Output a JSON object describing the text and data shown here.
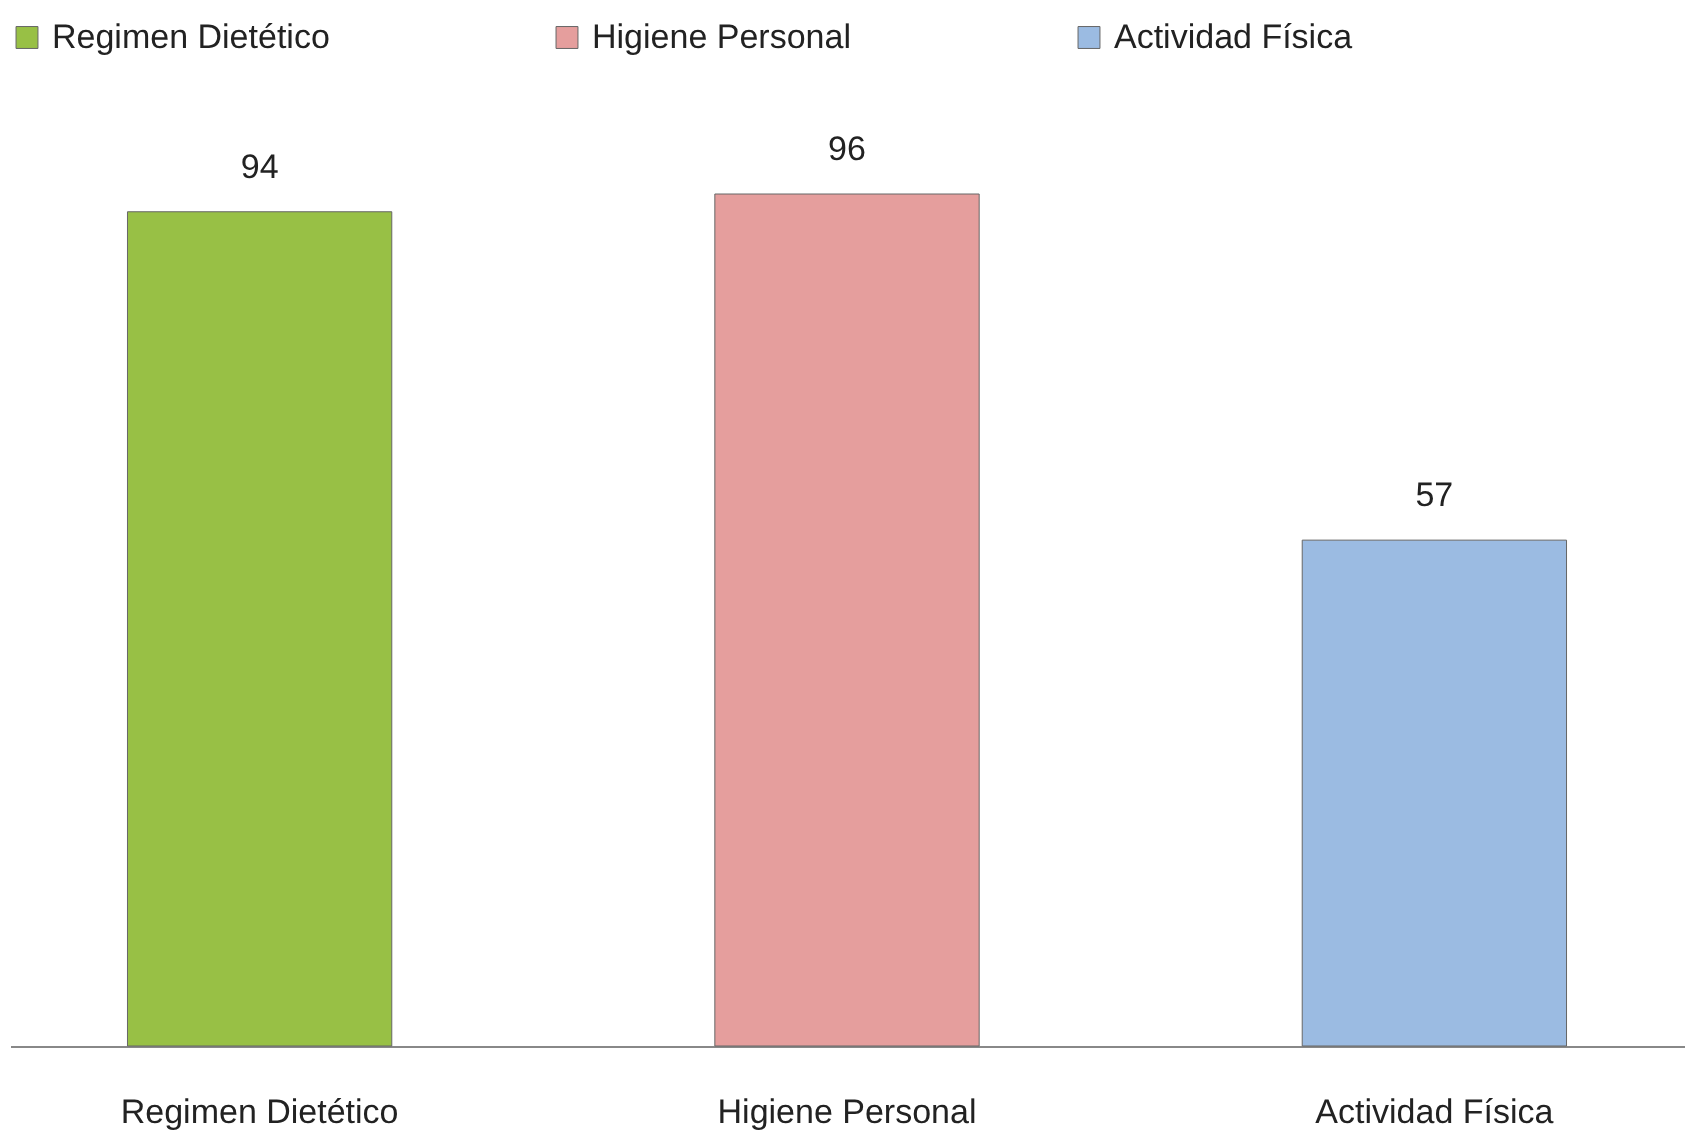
{
  "chart_data": {
    "type": "bar",
    "categories": [
      "Regimen Dietético",
      "Higiene Personal",
      "Actividad Física"
    ],
    "series": [
      {
        "name": "Regimen Dietético",
        "color": "#98c045",
        "values": [
          94,
          null,
          null
        ]
      },
      {
        "name": "Higiene Personal",
        "color": "#e59e9d",
        "values": [
          null,
          96,
          null
        ]
      },
      {
        "name": "Actividad Física",
        "color": "#9bbbe2",
        "values": [
          null,
          null,
          57
        ]
      }
    ],
    "data_labels": true,
    "legend": "top",
    "grid": false
  }
}
